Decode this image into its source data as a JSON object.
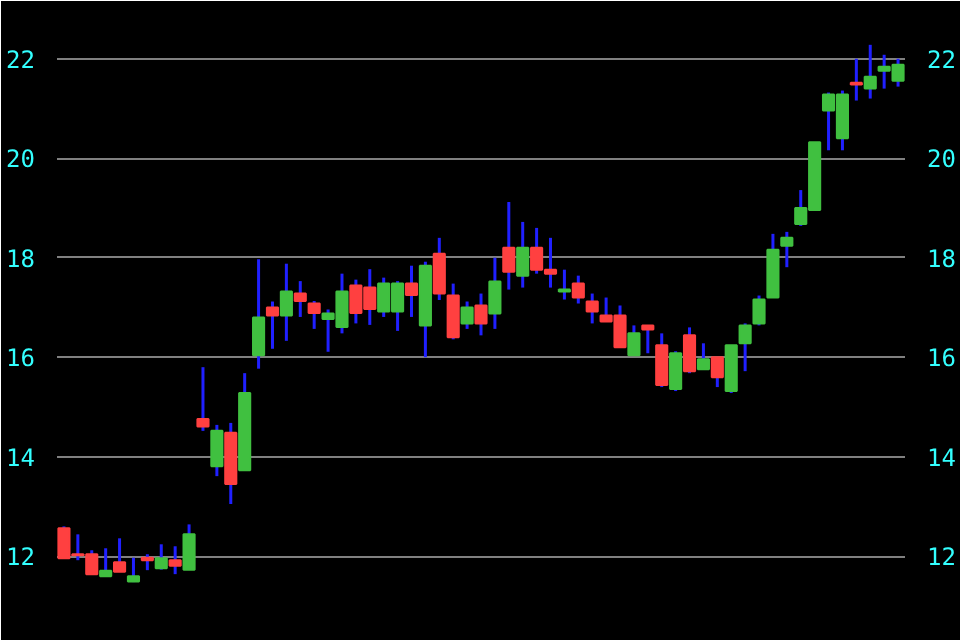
{
  "chart_data": {
    "type": "candlestick",
    "categories": [
      null,
      null,
      null,
      null,
      null,
      null,
      null,
      null,
      null,
      null,
      null,
      null,
      null,
      null,
      null,
      null,
      null,
      null,
      null,
      null,
      null,
      null,
      null,
      null,
      null,
      null,
      null,
      null,
      null,
      null,
      null,
      null,
      null,
      null,
      null,
      null,
      null,
      null,
      null,
      null,
      null,
      null,
      null,
      null,
      null,
      null,
      null,
      null,
      null,
      null,
      null,
      null,
      null,
      null,
      null,
      null,
      null,
      null,
      null,
      null,
      null
    ],
    "ohlc": [
      [
        12.56,
        12.6,
        11.96,
        11.96
      ],
      [
        12.04,
        12.44,
        11.92,
        12.02
      ],
      [
        12.04,
        12.12,
        11.64,
        11.64
      ],
      [
        11.6,
        12.16,
        11.6,
        11.71
      ],
      [
        11.88,
        12.36,
        11.69,
        11.69
      ],
      [
        11.49,
        11.97,
        11.48,
        11.6
      ],
      [
        11.97,
        12.04,
        11.72,
        11.92
      ],
      [
        11.76,
        12.24,
        11.73,
        11.96
      ],
      [
        11.92,
        12.2,
        11.64,
        11.81
      ],
      [
        11.73,
        12.64,
        11.73,
        12.44
      ],
      [
        14.76,
        15.8,
        14.52,
        14.61
      ],
      [
        13.81,
        14.64,
        13.61,
        14.52
      ],
      [
        14.48,
        14.68,
        13.05,
        13.45
      ],
      [
        13.73,
        15.68,
        13.73,
        15.28
      ],
      [
        16.04,
        17.97,
        15.77,
        16.8
      ],
      [
        17.0,
        17.12,
        16.17,
        16.84
      ],
      [
        16.84,
        17.88,
        16.33,
        17.32
      ],
      [
        17.28,
        17.53,
        16.81,
        17.13
      ],
      [
        17.08,
        17.13,
        16.57,
        16.89
      ],
      [
        16.77,
        16.96,
        16.11,
        16.88
      ],
      [
        16.61,
        17.68,
        16.48,
        17.32
      ],
      [
        17.44,
        17.56,
        16.68,
        16.89
      ],
      [
        17.4,
        17.77,
        16.65,
        16.97
      ],
      [
        16.92,
        17.6,
        16.81,
        17.48
      ],
      [
        16.92,
        17.53,
        16.53,
        17.48
      ],
      [
        17.48,
        17.84,
        16.81,
        17.25
      ],
      [
        16.64,
        17.92,
        16.0,
        17.84
      ],
      [
        18.08,
        18.4,
        17.15,
        17.28
      ],
      [
        17.24,
        17.48,
        16.36,
        16.4
      ],
      [
        16.68,
        17.12,
        16.57,
        17.0
      ],
      [
        17.04,
        17.28,
        16.44,
        16.68
      ],
      [
        16.88,
        18.0,
        16.57,
        17.52
      ],
      [
        18.2,
        19.12,
        17.36,
        17.72
      ],
      [
        17.64,
        18.72,
        17.4,
        18.2
      ],
      [
        18.2,
        18.6,
        17.68,
        17.76
      ],
      [
        17.76,
        18.4,
        17.4,
        17.68
      ],
      [
        17.32,
        17.76,
        17.16,
        17.36
      ],
      [
        17.48,
        17.64,
        17.08,
        17.2
      ],
      [
        17.12,
        17.28,
        16.68,
        16.92
      ],
      [
        16.84,
        17.2,
        16.72,
        16.72
      ],
      [
        16.84,
        17.04,
        16.2,
        16.2
      ],
      [
        16.04,
        16.64,
        16.04,
        16.48
      ],
      [
        16.64,
        16.64,
        16.08,
        16.56
      ],
      [
        16.24,
        16.48,
        15.4,
        15.44
      ],
      [
        15.36,
        16.12,
        15.32,
        16.08
      ],
      [
        16.44,
        16.6,
        15.68,
        15.72
      ],
      [
        15.76,
        16.28,
        15.76,
        15.96
      ],
      [
        16.0,
        16.0,
        15.4,
        15.6
      ],
      [
        15.32,
        16.24,
        15.28,
        16.24
      ],
      [
        16.28,
        16.68,
        15.72,
        16.64
      ],
      [
        16.68,
        17.24,
        16.64,
        17.16
      ],
      [
        17.2,
        18.48,
        17.2,
        18.16
      ],
      [
        18.24,
        18.52,
        17.81,
        18.4
      ],
      [
        18.68,
        19.36,
        18.64,
        19.0
      ],
      [
        18.96,
        20.32,
        18.96,
        20.32
      ],
      [
        20.96,
        21.32,
        20.16,
        21.28
      ],
      [
        20.4,
        21.36,
        20.16,
        21.28
      ],
      [
        21.52,
        22.0,
        21.16,
        21.48
      ],
      [
        21.4,
        22.28,
        21.2,
        21.64
      ],
      [
        21.76,
        22.08,
        21.4,
        21.84
      ],
      [
        21.56,
        22.0,
        21.44,
        21.88
      ]
    ],
    "colors": [
      "#ff4040",
      "#ff4040",
      "#ff4040",
      "#40c040",
      "#ff4040",
      "#40c040",
      "#ff4040",
      "#40c040",
      "#ff4040",
      "#40c040",
      "#ff4040",
      "#40c040",
      "#ff4040",
      "#40c040",
      "#40c040",
      "#ff4040",
      "#40c040",
      "#ff4040",
      "#ff4040",
      "#40c040",
      "#40c040",
      "#ff4040",
      "#ff4040",
      "#40c040",
      "#40c040",
      "#ff4040",
      "#40c040",
      "#ff4040",
      "#ff4040",
      "#40c040",
      "#ff4040",
      "#40c040",
      "#ff4040",
      "#40c040",
      "#ff4040",
      "#ff4040",
      "#40c040",
      "#ff4040",
      "#ff4040",
      "#ff4040",
      "#ff4040",
      "#40c040",
      "#ff4040",
      "#ff4040",
      "#40c040",
      "#ff4040",
      "#40c040",
      "#ff4040",
      "#40c040",
      "#40c040",
      "#40c040",
      "#40c040",
      "#40c040",
      "#40c040",
      "#40c040",
      "#40c040",
      "#40c040",
      "#ff4040",
      "#40c040",
      "#40c040",
      "#40c040"
    ],
    "ylim": [
      11.1,
      23.0
    ],
    "yticks": [
      12,
      14,
      16,
      18,
      20,
      22
    ],
    "y2lim": [
      11.1,
      23.0
    ],
    "y2ticks": [
      12,
      14,
      16,
      18,
      20,
      22
    ],
    "grid": "y",
    "tick_labels": "y"
  }
}
